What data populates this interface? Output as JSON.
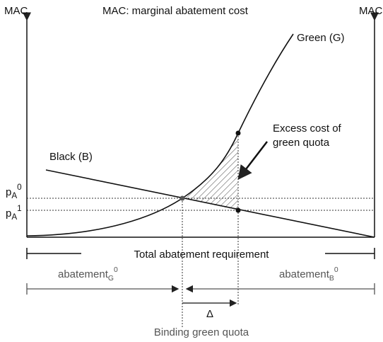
{
  "axis": {
    "left_label": "MAC",
    "right_label": "MAC",
    "title": "MAC: marginal abatement cost"
  },
  "curves": {
    "green": "Green (G)",
    "black": "Black (B)"
  },
  "annotation": "Excess cost of green quota",
  "prices": [
    {
      "base": "p",
      "sub": "A",
      "sup": "0"
    },
    {
      "base": "p",
      "sub": "A",
      "sup": "1"
    }
  ],
  "bottom": {
    "total": "Total abatement requirement",
    "green": {
      "base": "abatement",
      "sub": "G",
      "sup": "0"
    },
    "black": {
      "base": "abatement",
      "sub": "B",
      "sup": "0"
    },
    "delta": "Δ",
    "quota": "Binding green quota"
  }
}
